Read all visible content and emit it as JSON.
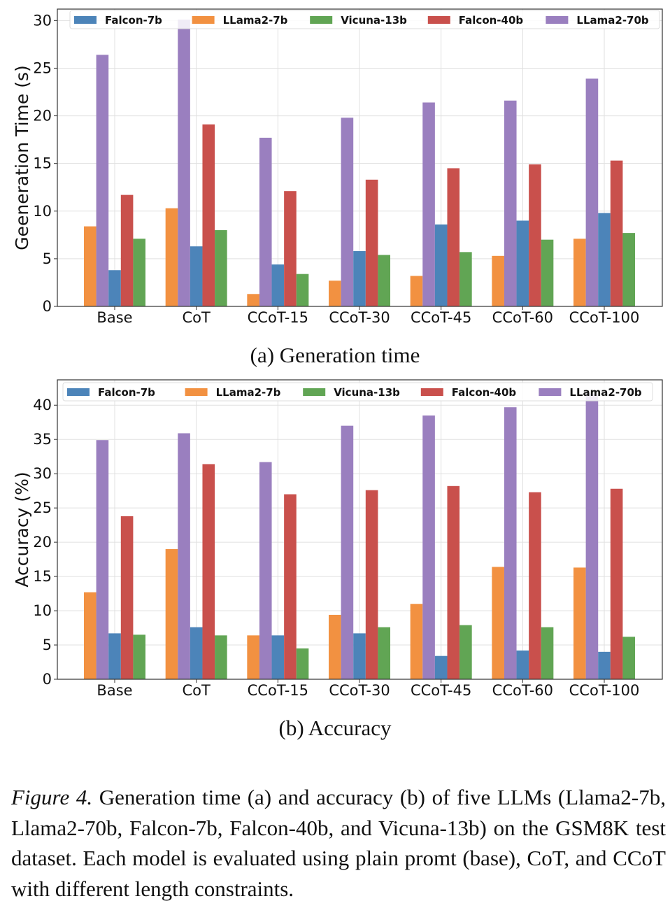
{
  "series_colors": {
    "Falcon-7b": "#4c84b9",
    "LLama2-7b": "#f29141",
    "Vicuna-13b": "#61a554",
    "Falcon-40b": "#c9504c",
    "LLama2-70b": "#9a7fbf"
  },
  "chart_data": [
    {
      "type": "bar",
      "subtitle": "(a) Generation time",
      "xlabel": "",
      "ylabel": "Geeneration Time (s)",
      "ylim": [
        0,
        31.2
      ],
      "yticks": [
        0,
        5,
        10,
        15,
        20,
        25,
        30
      ],
      "grid": true,
      "legend_placement": "top",
      "legend_order": [
        "Falcon-7b",
        "LLama2-7b",
        "Vicuna-13b",
        "Falcon-40b",
        "LLama2-70b"
      ],
      "categories": [
        "Base",
        "CoT",
        "CCoT-15",
        "CCoT-30",
        "CCoT-45",
        "CCoT-60",
        "CCoT-100"
      ],
      "series": [
        {
          "name": "LLama2-7b",
          "values": [
            8.4,
            10.3,
            1.3,
            2.7,
            3.2,
            5.3,
            7.1
          ]
        },
        {
          "name": "LLama2-70b",
          "values": [
            26.4,
            30.1,
            17.7,
            19.8,
            21.4,
            21.6,
            23.9
          ]
        },
        {
          "name": "Falcon-7b",
          "values": [
            3.8,
            6.3,
            4.4,
            5.8,
            8.6,
            9.0,
            9.8
          ]
        },
        {
          "name": "Falcon-40b",
          "values": [
            11.7,
            19.1,
            12.1,
            13.3,
            14.5,
            14.9,
            15.3
          ]
        },
        {
          "name": "Vicuna-13b",
          "values": [
            7.1,
            8.0,
            3.4,
            5.4,
            5.7,
            7.0,
            7.7
          ]
        }
      ]
    },
    {
      "type": "bar",
      "subtitle": "(b) Accuracy",
      "xlabel": "",
      "ylabel": "Accuracy (%)",
      "ylim": [
        0,
        43.7
      ],
      "yticks": [
        0,
        5,
        10,
        15,
        20,
        25,
        30,
        35,
        40
      ],
      "grid": true,
      "legend_placement": "top",
      "legend_order": [
        "Falcon-7b",
        "LLama2-7b",
        "Vicuna-13b",
        "Falcon-40b",
        "LLama2-70b"
      ],
      "categories": [
        "Base",
        "CoT",
        "CCoT-15",
        "CCoT-30",
        "CCoT-45",
        "CCoT-60",
        "CCoT-100"
      ],
      "series": [
        {
          "name": "LLama2-7b",
          "values": [
            12.7,
            19.0,
            6.4,
            9.4,
            11.0,
            16.4,
            16.3
          ]
        },
        {
          "name": "LLama2-70b",
          "values": [
            34.9,
            35.9,
            31.7,
            37.0,
            38.5,
            39.7,
            41.7
          ]
        },
        {
          "name": "Falcon-7b",
          "values": [
            6.7,
            7.6,
            6.4,
            6.7,
            3.4,
            4.2,
            4.0
          ]
        },
        {
          "name": "Falcon-40b",
          "values": [
            23.8,
            31.4,
            27.0,
            27.6,
            28.2,
            27.3,
            27.8
          ]
        },
        {
          "name": "Vicuna-13b",
          "values": [
            6.5,
            6.4,
            4.5,
            7.6,
            7.9,
            7.6,
            6.2
          ]
        }
      ]
    }
  ],
  "caption": {
    "label": "Figure 4.",
    "text": " Generation time (a) and accuracy (b) of five LLMs (Llama2-7b, Llama2-70b, Falcon-7b, Falcon-40b, and Vicuna-13b) on the GSM8K test dataset. Each model is evaluated using plain promt (base), CoT, and CCoT with different length constraints."
  }
}
